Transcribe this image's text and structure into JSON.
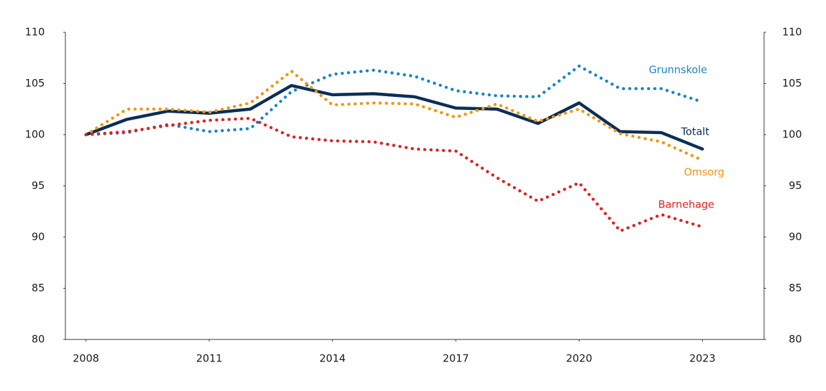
{
  "chart_data": {
    "type": "line",
    "x": [
      2008,
      2009,
      2010,
      2011,
      2012,
      2013,
      2014,
      2015,
      2016,
      2017,
      2018,
      2019,
      2020,
      2021,
      2022,
      2023
    ],
    "series": [
      {
        "name": "Grunnskole",
        "color": "#1a85c0",
        "dotted": true,
        "values": [
          100,
          100.2,
          101.0,
          100.3,
          100.6,
          104.2,
          105.9,
          106.3,
          105.7,
          104.3,
          103.8,
          103.7,
          106.7,
          104.5,
          104.5,
          103.2
        ]
      },
      {
        "name": "Totalt",
        "color": "#0b2f55",
        "dotted": false,
        "values": [
          100,
          101.5,
          102.3,
          102.1,
          102.5,
          104.8,
          103.9,
          104.0,
          103.7,
          102.6,
          102.5,
          101.1,
          103.1,
          100.3,
          100.2,
          98.6
        ]
      },
      {
        "name": "Omsorg",
        "color": "#f0960f",
        "dotted": true,
        "values": [
          100,
          102.5,
          102.5,
          102.2,
          103.1,
          106.2,
          102.9,
          103.1,
          103.0,
          101.7,
          103.0,
          101.3,
          102.5,
          100.1,
          99.3,
          97.5
        ]
      },
      {
        "name": "Barnehage",
        "color": "#e02020",
        "dotted": true,
        "values": [
          100,
          100.3,
          100.9,
          101.4,
          101.6,
          99.8,
          99.4,
          99.3,
          98.6,
          98.4,
          95.8,
          93.5,
          95.3,
          90.6,
          92.2,
          91.0
        ]
      }
    ],
    "xlim": [
      2007.5,
      2024.5
    ],
    "xticks": [
      2008,
      2011,
      2014,
      2017,
      2020,
      2023
    ],
    "ylim": [
      80,
      110
    ],
    "yticks": [
      80,
      85,
      90,
      95,
      100,
      105,
      110
    ],
    "y2lim": [
      80,
      110
    ],
    "y2ticks": [
      80,
      85,
      90,
      95,
      100,
      105,
      110
    ]
  }
}
